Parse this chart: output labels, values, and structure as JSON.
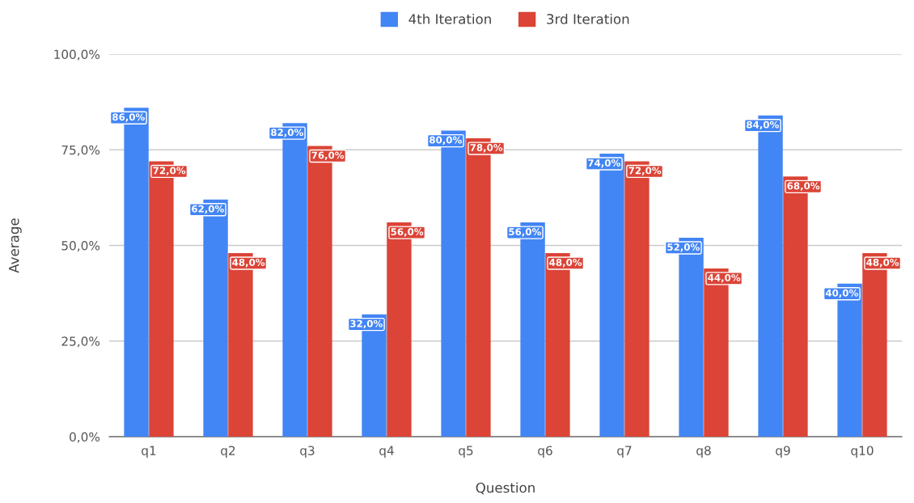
{
  "chart_data": {
    "type": "bar",
    "xlabel": "Question",
    "ylabel": "Average",
    "categories": [
      "q1",
      "q2",
      "q3",
      "q4",
      "q5",
      "q6",
      "q7",
      "q8",
      "q9",
      "q10"
    ],
    "series": [
      {
        "name": "4th Iteration",
        "color": "#4285f4",
        "values": [
          86,
          62,
          82,
          32,
          80,
          56,
          74,
          52,
          84,
          40
        ],
        "value_labels": [
          "86,0%",
          "62,0%",
          "82,0%",
          "32,0%",
          "80,0%",
          "56,0%",
          "74,0%",
          "52,0%",
          "84,0%",
          "40,0%"
        ]
      },
      {
        "name": "3rd Iteration",
        "color": "#db4437",
        "values": [
          72,
          48,
          76,
          56,
          78,
          48,
          72,
          44,
          68,
          48
        ],
        "value_labels": [
          "72,0%",
          "48,0%",
          "76,0%",
          "56,0%",
          "78,0%",
          "48,0%",
          "72,0%",
          "44,0%",
          "68,0%",
          "48,0%"
        ]
      }
    ],
    "ylim": [
      0,
      100
    ],
    "yticks": [
      {
        "value": 0,
        "label": "0,0%"
      },
      {
        "value": 25,
        "label": "25,0%"
      },
      {
        "value": 50,
        "label": "50,0%"
      },
      {
        "value": 75,
        "label": "75,0%"
      },
      {
        "value": 100,
        "label": "100,0%"
      }
    ],
    "grid": "y",
    "legend": "top"
  }
}
